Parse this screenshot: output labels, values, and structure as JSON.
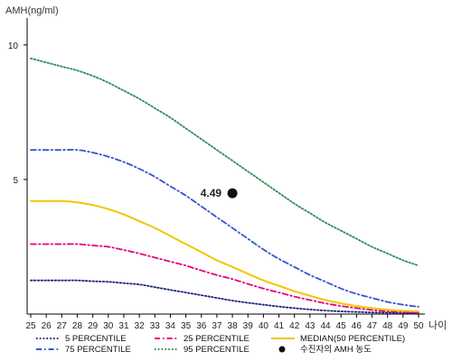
{
  "chart_data": {
    "type": "line",
    "title": "",
    "ylabel": "AMH(ng/ml)",
    "xlabel": "나이",
    "xlim": [
      25,
      50
    ],
    "ylim": [
      0,
      11
    ],
    "x": [
      25,
      26,
      27,
      28,
      29,
      30,
      31,
      32,
      33,
      34,
      35,
      36,
      37,
      38,
      39,
      40,
      41,
      42,
      43,
      44,
      45,
      46,
      47,
      48,
      49,
      50
    ],
    "x_tick_labels": [
      "25",
      "26",
      "27",
      "28",
      "29",
      "30",
      "31",
      "32",
      "33",
      "34",
      "35",
      "36",
      "37",
      "38",
      "39",
      "40",
      "41",
      "42",
      "43",
      "44",
      "45",
      "46",
      "47",
      "48",
      "49",
      "50"
    ],
    "y_tick_labels": [
      "5",
      "10"
    ],
    "y_ticks": [
      5,
      10
    ],
    "grid": false,
    "legend_position": "bottom",
    "series": [
      {
        "name": "5 PERCENTILE",
        "color": "#1a237e",
        "dash": "dotted",
        "values": [
          1.25,
          1.25,
          1.25,
          1.25,
          1.22,
          1.2,
          1.15,
          1.1,
          1.0,
          0.9,
          0.8,
          0.7,
          0.6,
          0.5,
          0.42,
          0.35,
          0.28,
          0.22,
          0.17,
          0.13,
          0.1,
          0.08,
          0.06,
          0.05,
          0.04,
          0.03
        ]
      },
      {
        "name": "25 PERCENTILE",
        "color": "#e6007e",
        "dash": "dashdot",
        "values": [
          2.6,
          2.6,
          2.6,
          2.6,
          2.55,
          2.5,
          2.38,
          2.25,
          2.1,
          1.95,
          1.8,
          1.62,
          1.45,
          1.3,
          1.12,
          0.95,
          0.8,
          0.65,
          0.52,
          0.4,
          0.3,
          0.22,
          0.15,
          0.1,
          0.07,
          0.05
        ]
      },
      {
        "name": "MEDIAN(50 PERCENTILE)",
        "color": "#f2c500",
        "dash": "solid",
        "values": [
          4.2,
          4.2,
          4.2,
          4.15,
          4.05,
          3.9,
          3.7,
          3.45,
          3.2,
          2.9,
          2.6,
          2.3,
          2.0,
          1.75,
          1.5,
          1.25,
          1.05,
          0.85,
          0.68,
          0.52,
          0.4,
          0.3,
          0.22,
          0.16,
          0.12,
          0.1
        ]
      },
      {
        "name": "75 PERCENTILE",
        "color": "#3355cc",
        "dash": "dashdot",
        "values": [
          6.1,
          6.1,
          6.1,
          6.1,
          6.0,
          5.85,
          5.65,
          5.4,
          5.1,
          4.75,
          4.4,
          4.0,
          3.6,
          3.2,
          2.8,
          2.4,
          2.05,
          1.75,
          1.45,
          1.2,
          0.95,
          0.75,
          0.6,
          0.45,
          0.35,
          0.27
        ]
      },
      {
        "name": "95 PERCENTILE",
        "color": "#2e8b57",
        "dash": "dotted",
        "values": [
          9.5,
          9.35,
          9.2,
          9.05,
          8.85,
          8.6,
          8.3,
          8.0,
          7.65,
          7.3,
          6.9,
          6.5,
          6.1,
          5.7,
          5.3,
          4.9,
          4.5,
          4.1,
          3.75,
          3.4,
          3.1,
          2.8,
          2.5,
          2.25,
          2.0,
          1.8
        ]
      }
    ],
    "points": [
      {
        "name": "수진자의 AMH 농도",
        "x": 38,
        "y": 4.49,
        "label": "4.49",
        "color": "#111111"
      }
    ],
    "legend": [
      {
        "label": "5 PERCENTILE",
        "color": "#1a237e",
        "dash": "dotted"
      },
      {
        "label": "25 PERCENTILE",
        "color": "#e6007e",
        "dash": "dashdot"
      },
      {
        "label": "MEDIAN(50 PERCENTILE)",
        "color": "#f2c500",
        "dash": "solid"
      },
      {
        "label": "75 PERCENTILE",
        "color": "#3355cc",
        "dash": "dashdot"
      },
      {
        "label": "95 PERCENTILE",
        "color": "#2e8b57",
        "dash": "dotted"
      },
      {
        "label": "수진자의 AMH 농도",
        "color": "#111111",
        "marker": "circle"
      }
    ]
  }
}
